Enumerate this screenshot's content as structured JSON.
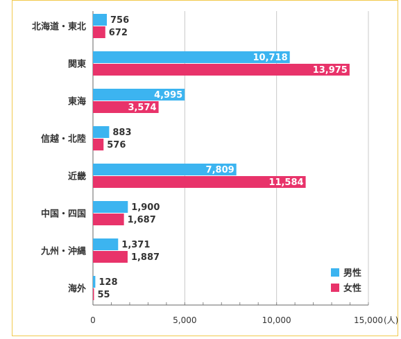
{
  "chart_data": {
    "type": "bar",
    "orientation": "horizontal",
    "categories": [
      "北海道・東北",
      "関東",
      "東海",
      "信越・北陸",
      "近畿",
      "中国・四国",
      "九州・沖縄",
      "海外"
    ],
    "series": [
      {
        "name": "男性",
        "color": "#3cb4f0",
        "values": [
          756,
          10718,
          4995,
          883,
          7809,
          1900,
          1371,
          128
        ],
        "labels": [
          "756",
          "10,718",
          "4,995",
          "883",
          "7,809",
          "1,900",
          "1,371",
          "128"
        ]
      },
      {
        "name": "女性",
        "color": "#e8336a",
        "values": [
          672,
          13975,
          3574,
          576,
          11584,
          1687,
          1887,
          55
        ],
        "labels": [
          "672",
          "13,975",
          "3,574",
          "576",
          "11,584",
          "1,687",
          "1,887",
          "55"
        ]
      }
    ],
    "xlim": [
      0,
      15000
    ],
    "xticks": [
      0,
      5000,
      10000,
      15000
    ],
    "xtick_labels": [
      "0",
      "5,000",
      "10,000",
      "15,000"
    ],
    "xunit": "(人)",
    "grid": true,
    "legend": "bottom-right"
  }
}
